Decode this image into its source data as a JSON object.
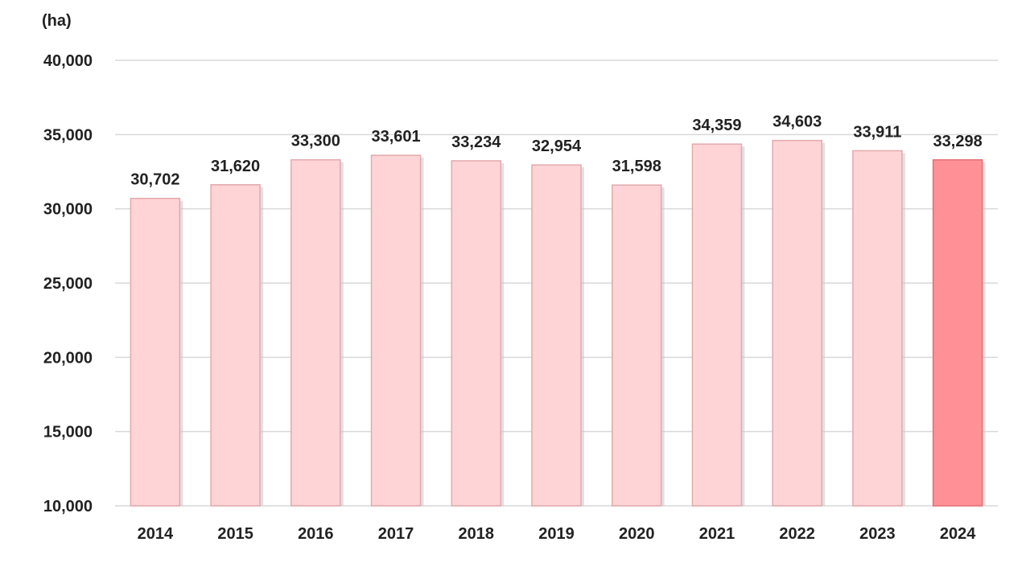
{
  "chart_data": {
    "type": "bar",
    "title": "",
    "xlabel": "",
    "ylabel": "",
    "unit": "(ha)",
    "categories": [
      "2014",
      "2015",
      "2016",
      "2017",
      "2018",
      "2019",
      "2020",
      "2021",
      "2022",
      "2023",
      "2024"
    ],
    "values": [
      30702,
      31620,
      33300,
      33601,
      33234,
      32954,
      31598,
      34359,
      34603,
      33911,
      33298
    ],
    "value_labels": [
      "30,702",
      "31,620",
      "33,300",
      "33,601",
      "33,234",
      "32,954",
      "31,598",
      "34,359",
      "34,603",
      "33,911",
      "33,298"
    ],
    "ylim": [
      10000,
      40000
    ],
    "yticks": [
      10000,
      15000,
      20000,
      25000,
      30000,
      35000,
      40000
    ],
    "ytick_labels": [
      "10,000",
      "15,000",
      "20,000",
      "25,000",
      "30,000",
      "35,000",
      "40,000"
    ],
    "grid": true,
    "highlight_index": 10,
    "colors": {
      "bar": "#ffd4d6",
      "bar_border": "#e3a9ac",
      "highlight": "#ff9196",
      "highlight_border": "#e36f74",
      "shadow": "#c8c8c8",
      "grid": "#d9d9d9"
    }
  }
}
